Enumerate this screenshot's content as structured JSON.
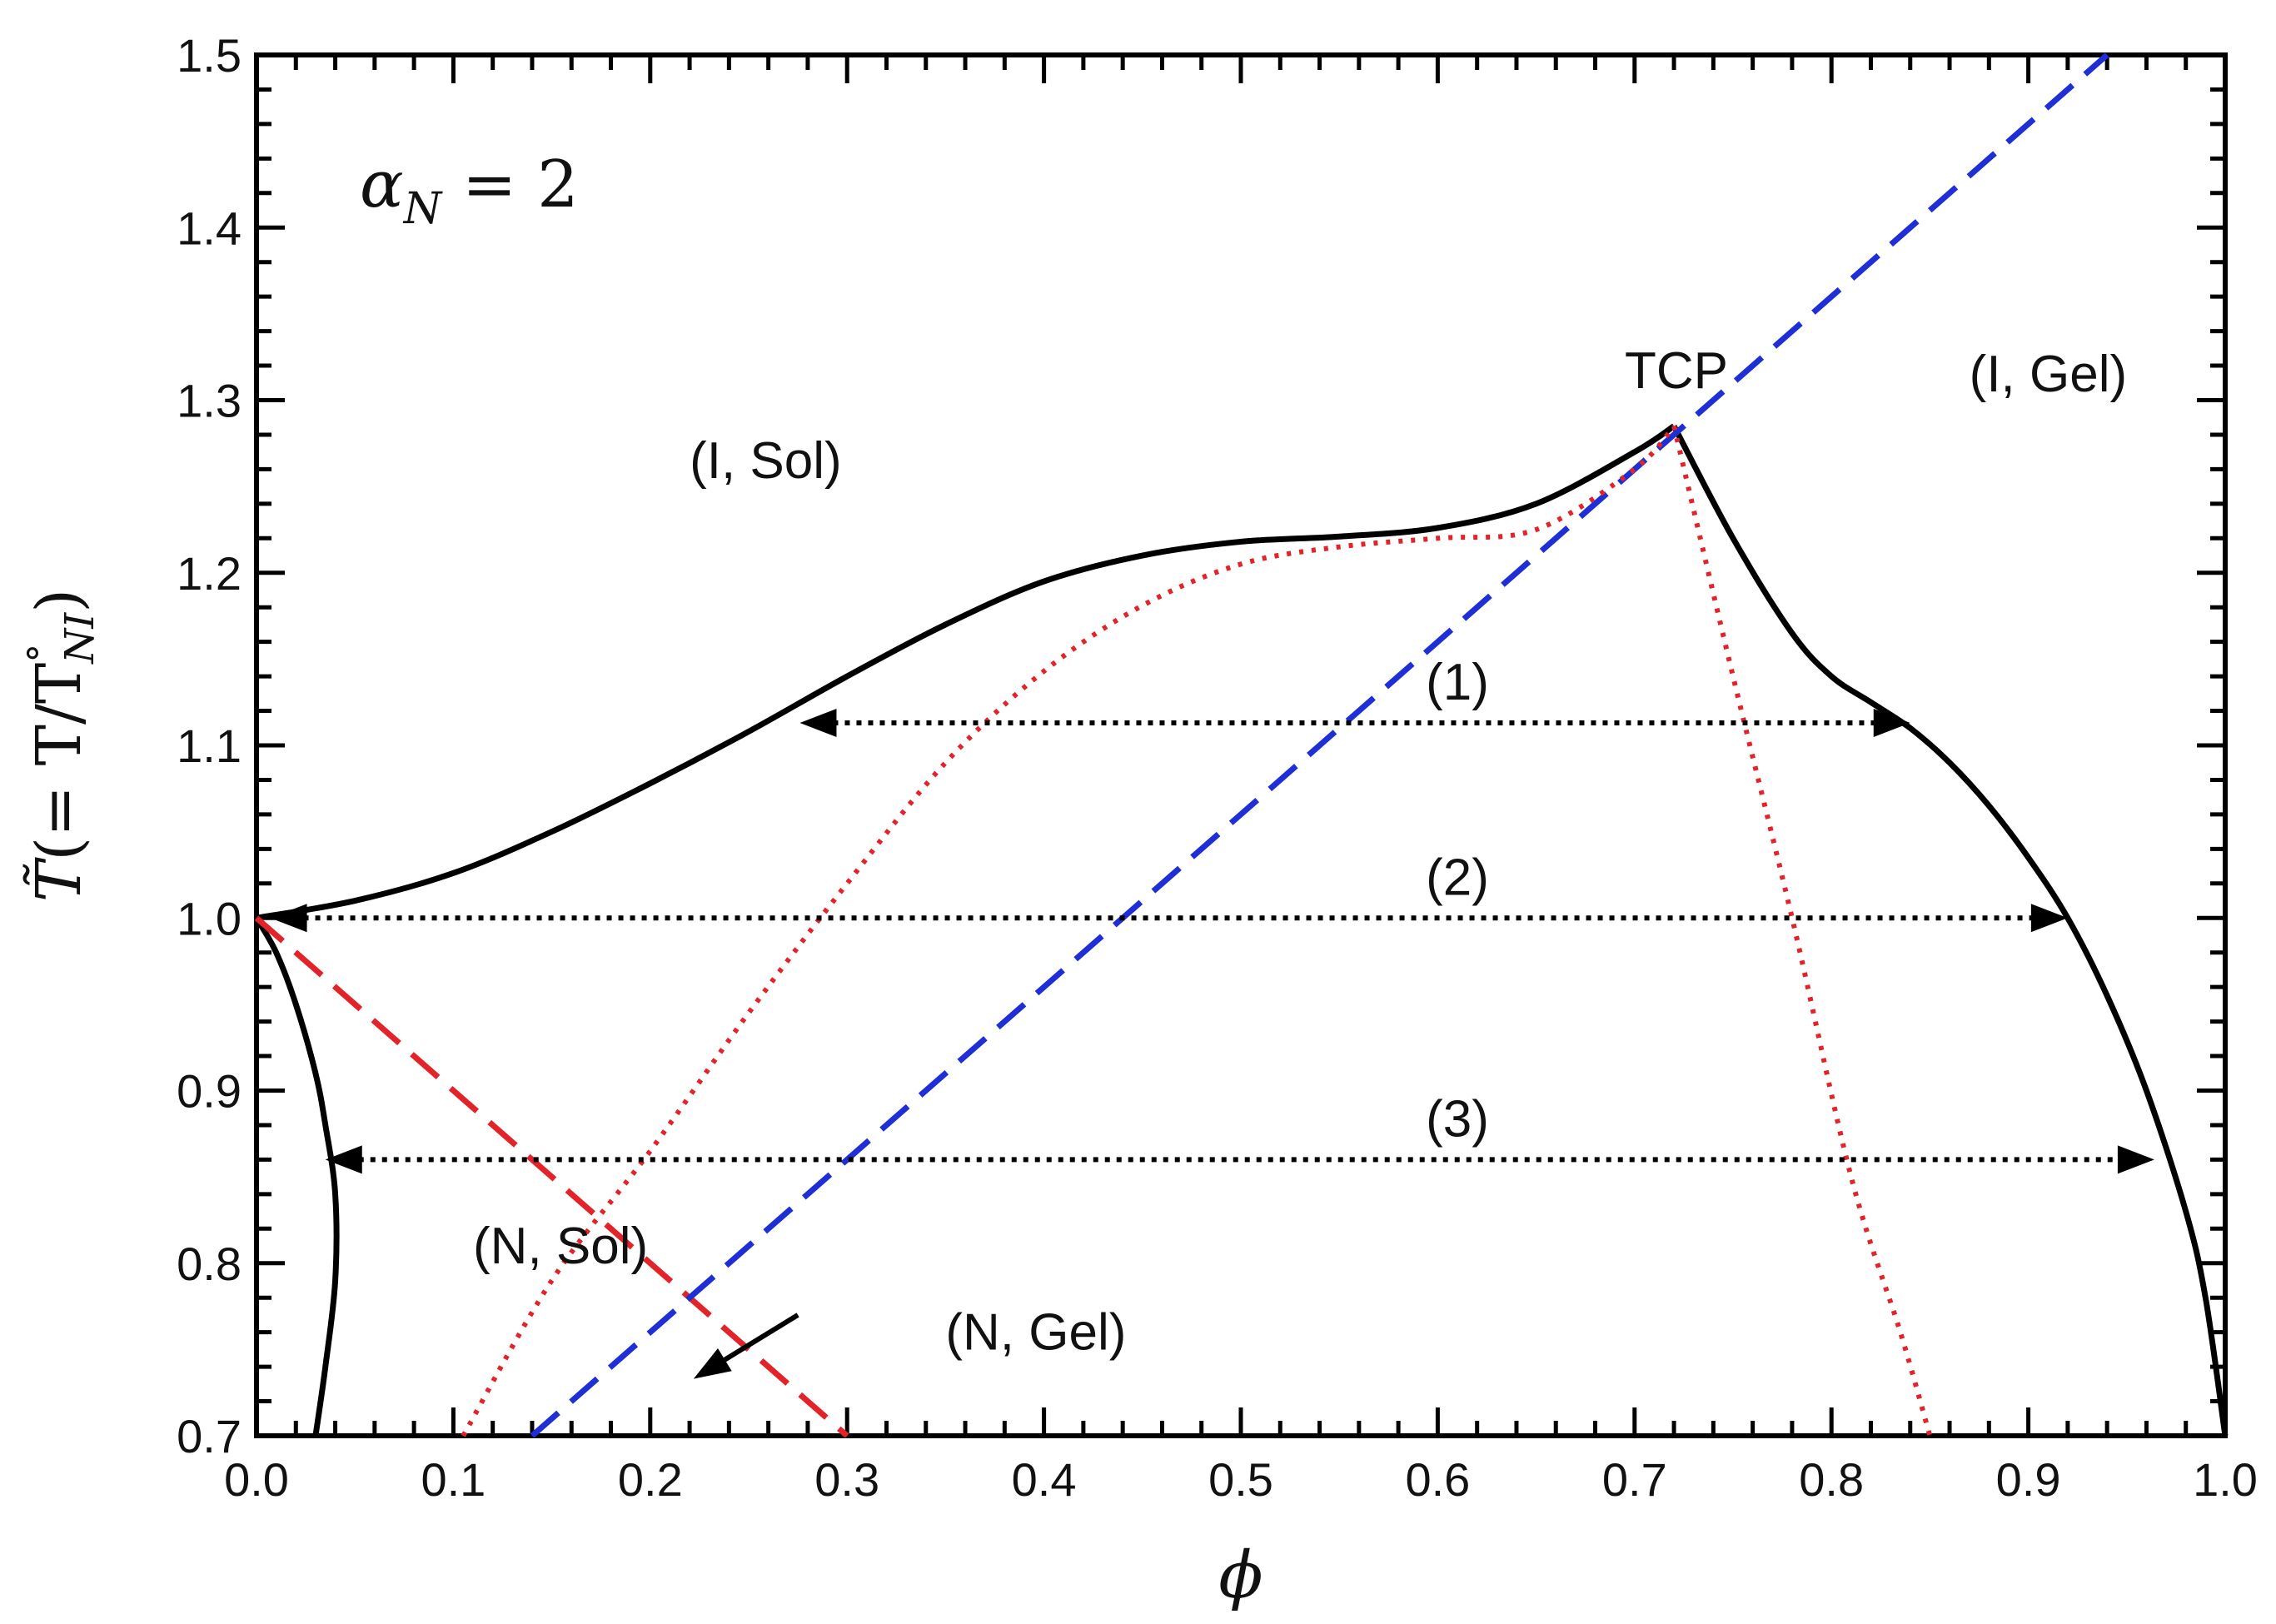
{
  "chart_data": {
    "type": "line",
    "title": "",
    "xlabel": "ϕ",
    "ylabel": "T̃(= T/T°NI)",
    "ylabel_parts": {
      "tilde_T": "T̃",
      "open": "(= T/T",
      "degree": "°",
      "sub": "NI",
      "close": ")"
    },
    "xlim": [
      0.0,
      1.0
    ],
    "ylim": [
      0.7,
      1.5
    ],
    "xticks": [
      "0.0",
      "0.1",
      "0.2",
      "0.3",
      "0.4",
      "0.5",
      "0.6",
      "0.7",
      "0.8",
      "0.9",
      "1.0"
    ],
    "yticks": [
      "0.7",
      "0.8",
      "0.9",
      "1.0",
      "1.1",
      "1.2",
      "1.3",
      "1.4",
      "1.5"
    ],
    "param_label": {
      "symbol": "α",
      "sub": "N",
      "rest": " = 2"
    },
    "colors": {
      "binodal": "#000000",
      "red_dash": "#e3232a",
      "blue_dash": "#1f2fd6",
      "red_dot": "#e3232a",
      "tie_line": "#000000"
    },
    "series": [
      {
        "name": "binodal-upper",
        "style": "solid",
        "color": "#000000",
        "x": [
          0.0,
          0.05,
          0.1,
          0.15,
          0.2,
          0.25,
          0.3,
          0.35,
          0.4,
          0.45,
          0.5,
          0.55,
          0.6,
          0.65,
          0.7,
          0.72
        ],
        "y": [
          1.0,
          1.01,
          1.026,
          1.05,
          1.078,
          1.108,
          1.14,
          1.17,
          1.195,
          1.21,
          1.218,
          1.221,
          1.226,
          1.24,
          1.27,
          1.285
        ]
      },
      {
        "name": "binodal-right",
        "style": "solid",
        "color": "#000000",
        "x": [
          0.72,
          0.75,
          0.78,
          0.8,
          0.82,
          0.84,
          0.86,
          0.88,
          0.9,
          0.92,
          0.94,
          0.96,
          0.98,
          0.99,
          1.0
        ],
        "y": [
          1.285,
          1.22,
          1.165,
          1.14,
          1.125,
          1.11,
          1.09,
          1.065,
          1.035,
          1.0,
          0.955,
          0.9,
          0.83,
          0.78,
          0.7
        ]
      },
      {
        "name": "binodal-left",
        "style": "solid",
        "color": "#000000",
        "x": [
          0.0,
          0.01,
          0.02,
          0.03,
          0.035,
          0.04,
          0.04,
          0.035,
          0.03
        ],
        "y": [
          1.0,
          0.98,
          0.95,
          0.91,
          0.88,
          0.84,
          0.79,
          0.74,
          0.7
        ]
      },
      {
        "name": "red-dashed",
        "style": "dashed",
        "color": "#e3232a",
        "x": [
          0.0,
          0.3
        ],
        "y": [
          1.0,
          0.7
        ]
      },
      {
        "name": "blue-dashed",
        "style": "dashed",
        "color": "#1f2fd6",
        "x": [
          0.14,
          0.94
        ],
        "y": [
          0.7,
          1.5
        ]
      },
      {
        "name": "red-dotted-spinodal",
        "style": "dotted",
        "color": "#e3232a",
        "x": [
          0.105,
          0.15,
          0.2,
          0.25,
          0.3,
          0.35,
          0.4,
          0.45,
          0.5,
          0.55,
          0.6,
          0.65,
          0.7,
          0.72
        ],
        "y": [
          0.7,
          0.79,
          0.865,
          0.945,
          1.02,
          1.09,
          1.143,
          1.181,
          1.205,
          1.215,
          1.22,
          1.225,
          1.26,
          1.285
        ]
      },
      {
        "name": "red-dotted-right",
        "style": "dotted",
        "color": "#e3232a",
        "x": [
          0.72,
          0.75,
          0.78,
          0.81,
          0.835,
          0.85
        ],
        "y": [
          1.285,
          1.14,
          1.0,
          0.85,
          0.76,
          0.7
        ]
      }
    ],
    "tie_lines": [
      {
        "label": "(1)",
        "y": 1.113,
        "x_start": 0.276,
        "x_end": 0.84
      },
      {
        "label": "(2)",
        "y": 1.0,
        "x_start": 0.007,
        "x_end": 0.92
      },
      {
        "label": "(3)",
        "y": 0.86,
        "x_start": 0.035,
        "x_end": 0.964
      }
    ],
    "annotations": [
      {
        "text": "(I, Sol)",
        "x": 0.22,
        "y": 1.255
      },
      {
        "text": "(I, Gel)",
        "x": 0.87,
        "y": 1.305
      },
      {
        "text": "TCP",
        "x": 0.695,
        "y": 1.307
      },
      {
        "text": "(N, Sol)",
        "x": 0.11,
        "y": 0.8
      },
      {
        "text": "(N, Gel)",
        "x": 0.35,
        "y": 0.75
      }
    ],
    "arrow_annotation": {
      "from": [
        0.275,
        0.77
      ],
      "to": [
        0.222,
        0.733
      ]
    }
  }
}
